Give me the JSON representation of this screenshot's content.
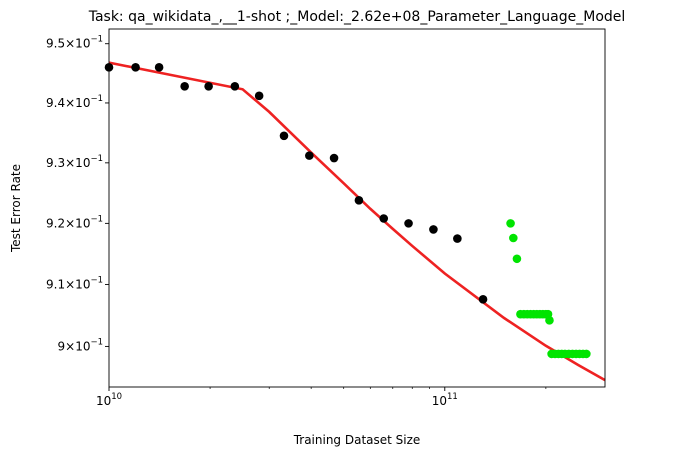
{
  "chart_data": {
    "type": "scatter",
    "title": "Task: qa_wikidata_,__1-shot ;_Model:_2.62e+08_Parameter_Language_Model",
    "xlabel": "Training Dataset Size",
    "ylabel": "Test Error Rate",
    "x_scale": "log",
    "y_scale": "log",
    "xlim": [
      10000000000.0,
      300000000000.0
    ],
    "ylim": [
      0.8935,
      0.9525
    ],
    "x_ticks": [
      {
        "value": 10000000000.0,
        "label": "10",
        "exp": "10"
      },
      {
        "value": 100000000000.0,
        "label": "10",
        "exp": "11"
      }
    ],
    "y_ticks": [
      {
        "value": 0.9,
        "mant": "9",
        "label": "10",
        "exp": "−1"
      },
      {
        "value": 0.91,
        "mant": "9.1",
        "label": "10",
        "exp": "−1"
      },
      {
        "value": 0.92,
        "mant": "9.2",
        "label": "10",
        "exp": "−1"
      },
      {
        "value": 0.93,
        "mant": "9.3",
        "label": "10",
        "exp": "−1"
      },
      {
        "value": 0.94,
        "mant": "9.4",
        "label": "10",
        "exp": "−1"
      },
      {
        "value": 0.95,
        "mant": "9.5",
        "label": "10",
        "exp": "−1"
      }
    ],
    "grid": false,
    "legend": "none",
    "series": [
      {
        "role": "observed",
        "color": "#000000",
        "points": [
          [
            10000000000.0,
            0.946
          ],
          [
            12000000000.0,
            0.946
          ],
          [
            14100000000.0,
            0.946
          ],
          [
            16800000000.0,
            0.9428
          ],
          [
            19800000000.0,
            0.9428
          ],
          [
            23700000000.0,
            0.9428
          ],
          [
            28000000000.0,
            0.9412
          ],
          [
            33200000000.0,
            0.9345
          ],
          [
            39500000000.0,
            0.9312
          ],
          [
            46800000000.0,
            0.9308
          ],
          [
            55500000000.0,
            0.9238
          ],
          [
            65800000000.0,
            0.9208
          ],
          [
            78000000000.0,
            0.92
          ],
          [
            92500000000.0,
            0.919
          ],
          [
            109000000000.0,
            0.9175
          ],
          [
            130000000000.0,
            0.9076
          ]
        ]
      },
      {
        "role": "extrapolation",
        "color": "#00e400",
        "points": [
          [
            157000000000.0,
            0.92
          ],
          [
            160000000000.0,
            0.9176
          ],
          [
            164000000000.0,
            0.9142
          ],
          [
            168000000000.0,
            0.9052
          ],
          [
            172000000000.0,
            0.9052
          ],
          [
            176000000000.0,
            0.9052
          ],
          [
            180000000000.0,
            0.9052
          ],
          [
            184000000000.0,
            0.9052
          ],
          [
            188000000000.0,
            0.9052
          ],
          [
            192000000000.0,
            0.9052
          ],
          [
            196000000000.0,
            0.9052
          ],
          [
            200000000000.0,
            0.9052
          ],
          [
            203000000000.0,
            0.9052
          ],
          [
            205000000000.0,
            0.9042
          ],
          [
            208000000000.0,
            0.8988
          ],
          [
            213000000000.0,
            0.8988
          ],
          [
            218000000000.0,
            0.8988
          ],
          [
            223000000000.0,
            0.8988
          ],
          [
            228000000000.0,
            0.8988
          ],
          [
            234000000000.0,
            0.8988
          ],
          [
            240000000000.0,
            0.8988
          ],
          [
            246000000000.0,
            0.8988
          ],
          [
            252000000000.0,
            0.8988
          ],
          [
            258000000000.0,
            0.8988
          ],
          [
            264000000000.0,
            0.8988
          ]
        ]
      }
    ],
    "fit_line": {
      "color": "#ee2222",
      "points": [
        [
          10000000000.0,
          0.9468
        ],
        [
          25000000000.0,
          0.9423
        ],
        [
          30000000000.0,
          0.9385
        ],
        [
          40000000000.0,
          0.9317
        ],
        [
          50000000000.0,
          0.9266
        ],
        [
          60000000000.0,
          0.9224
        ],
        [
          70000000000.0,
          0.9191
        ],
        [
          80000000000.0,
          0.9163
        ],
        [
          100000000000.0,
          0.9118
        ],
        [
          150000000000.0,
          0.9046
        ],
        [
          200000000000.0,
          0.9001
        ],
        [
          250000000000.0,
          0.897
        ],
        [
          300000000000.0,
          0.8946
        ]
      ]
    }
  }
}
